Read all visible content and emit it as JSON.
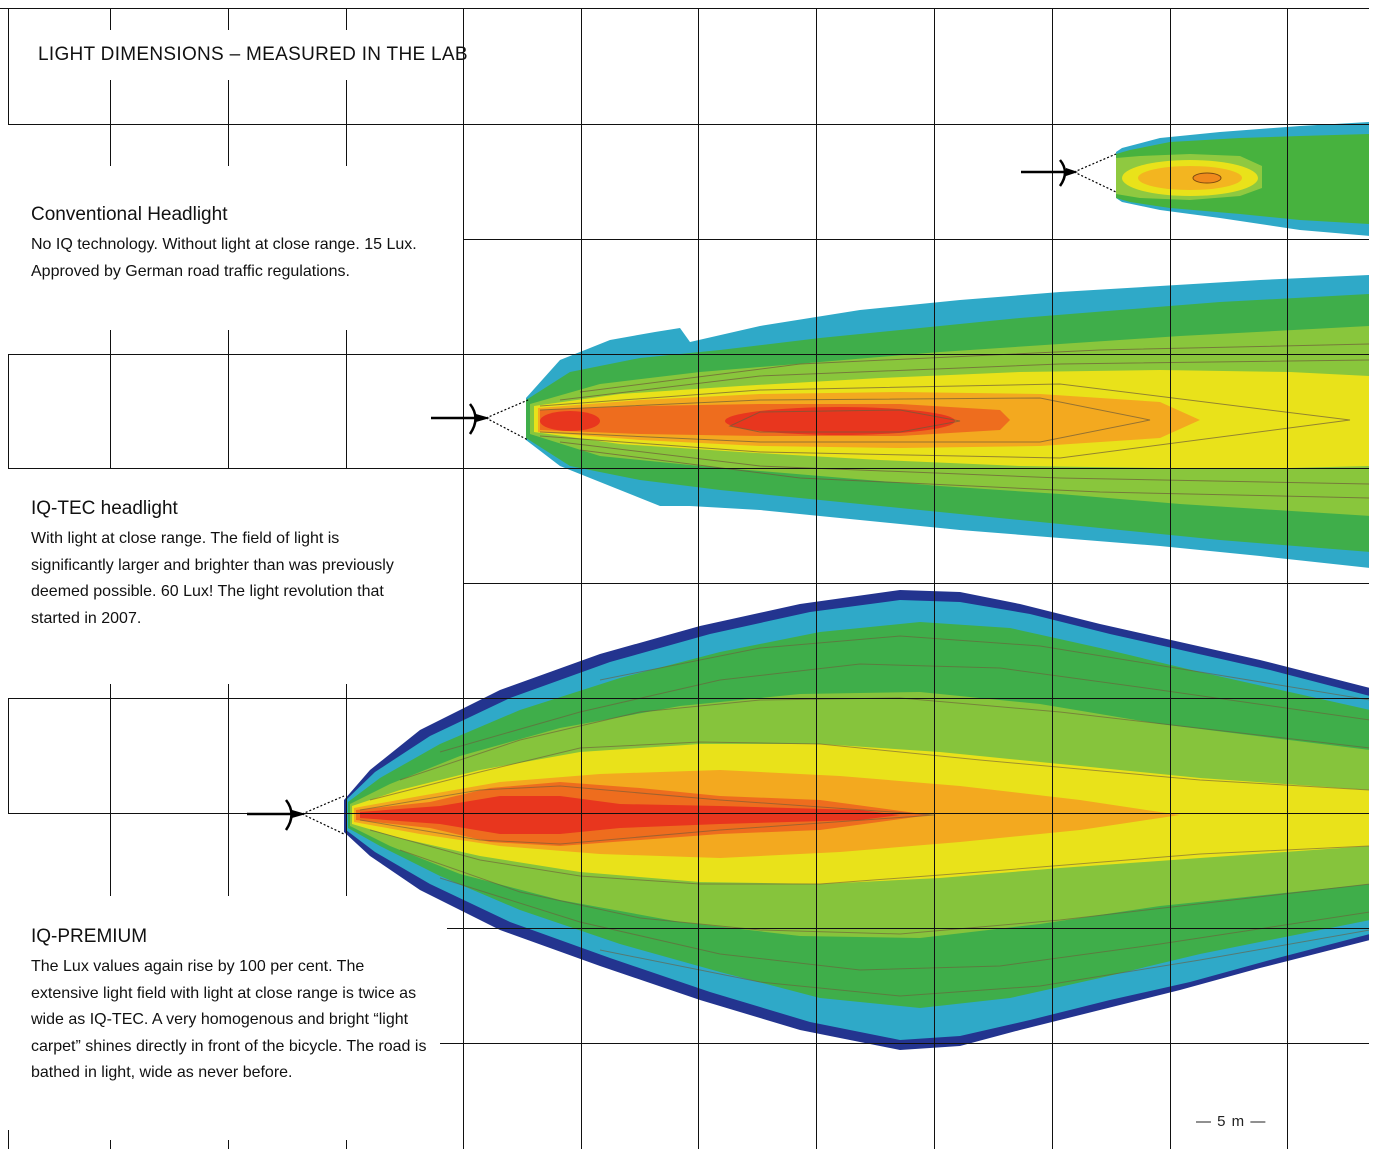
{
  "title": "LIGHT DIMENSIONS – MEASURED IN THE LAB",
  "headlights": [
    {
      "name": "Conventional Headlight",
      "description": "No IQ technology. Without light at close range. 15 Lux. Approved by German road traffic regulations."
    },
    {
      "name": "IQ-TEC headlight",
      "description": "With light at close range. The field of light is significantly larger and brighter than was previously deemed possible. 60 Lux! The light revolution that started in 2007."
    },
    {
      "name": "IQ-PREMIUM",
      "description": "The Lux values again rise by 100 per cent. The extensive light field with light at close range is twice as wide as IQ-TEC. A very homogenous and bright “light carpet” shines directly in front of the bicycle. The road is bathed in light, wide as never before."
    }
  ],
  "scale_label": "— 5 m —",
  "colors": {
    "peak": "#e8361e",
    "high": "#f39a1f",
    "mid": "#e9e21a",
    "low": "#47b23e",
    "edge": "#2fa9c8",
    "rim": "#23348f",
    "grid": "#111111"
  },
  "icons": [
    "headlight-icon-conventional",
    "headlight-icon-iq-tec",
    "headlight-icon-iq-premium"
  ]
}
